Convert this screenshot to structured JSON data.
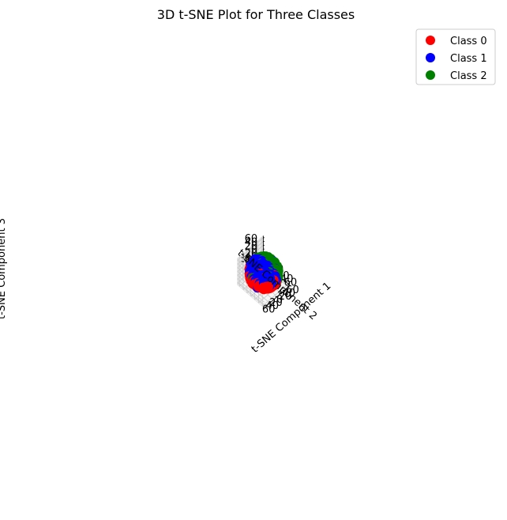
{
  "chart_data": {
    "type": "scatter",
    "projection": "3d",
    "title": "3D t-SNE Plot for Three Classes",
    "xlabel": "t-SNE Component 1",
    "ylabel": "t-SNE Component 2",
    "zlabel": "t-SNE Component 3",
    "xlim": [
      -70,
      70
    ],
    "ylim": [
      -70,
      70
    ],
    "zlim": [
      -70,
      70
    ],
    "xticks": [
      -60,
      -40,
      -20,
      0,
      20,
      40,
      60
    ],
    "yticks": [
      -60,
      -40,
      -20,
      0,
      20,
      40,
      60
    ],
    "zticks": [
      -60,
      -40,
      -20,
      0,
      20,
      40,
      60
    ],
    "grid": true,
    "legend_position": "top-right",
    "series": [
      {
        "name": "Class 0",
        "color": "#ff0000",
        "region": "lower-front",
        "approx_points": 900
      },
      {
        "name": "Class 1",
        "color": "#0000ff",
        "region": "upper-back",
        "approx_points": 900
      },
      {
        "name": "Class 2",
        "color": "#008000",
        "region": "right-side",
        "approx_points": 900
      }
    ],
    "point_cloud_radius": 60
  }
}
